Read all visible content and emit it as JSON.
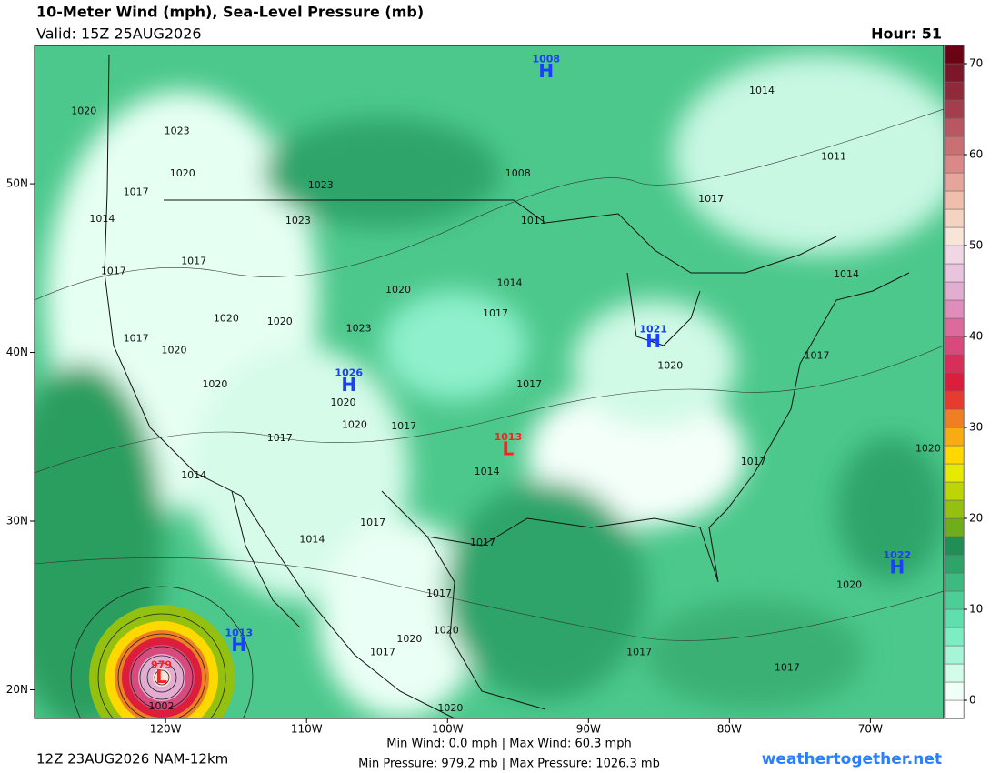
{
  "header": {
    "title": "10-Meter Wind (mph), Sea-Level Pressure (mb)",
    "valid": "Valid: 15Z 25AUG2026",
    "hour": "Hour: 51"
  },
  "map": {
    "lon_range": [
      -129.3,
      -64.8
    ],
    "lat_range": [
      18.3,
      58.2
    ],
    "lon_ticks": [
      {
        "value": -120,
        "label": "120W"
      },
      {
        "value": -110,
        "label": "110W"
      },
      {
        "value": -100,
        "label": "100W"
      },
      {
        "value": -90,
        "label": "90W"
      },
      {
        "value": -80,
        "label": "80W"
      },
      {
        "value": -70,
        "label": "70W"
      }
    ],
    "lat_ticks": [
      {
        "value": 20,
        "label": "20N"
      },
      {
        "value": 30,
        "label": "30N"
      },
      {
        "value": 40,
        "label": "40N"
      },
      {
        "value": 50,
        "label": "50N"
      }
    ],
    "centers": [
      {
        "type": "H",
        "pressure": 1008,
        "lon": -93.0,
        "lat": 56.6,
        "color": "#1a3fff"
      },
      {
        "type": "H",
        "pressure": 1021,
        "lon": -85.4,
        "lat": 40.6,
        "color": "#1a3fff"
      },
      {
        "type": "H",
        "pressure": 1026,
        "lon": -107.0,
        "lat": 38.0,
        "color": "#1a3fff"
      },
      {
        "type": "L",
        "pressure": 1013,
        "lon": -95.7,
        "lat": 34.2,
        "color": "#ff2020"
      },
      {
        "type": "H",
        "pressure": 1022,
        "lon": -68.1,
        "lat": 27.2,
        "color": "#1a3fff"
      },
      {
        "type": "H",
        "pressure": 1013,
        "lon": -114.8,
        "lat": 22.6,
        "color": "#1a3fff"
      },
      {
        "type": "L",
        "pressure": 979,
        "lon": -120.3,
        "lat": 20.7,
        "color": "#ff2020"
      }
    ],
    "isobar_labels": [
      {
        "value": 1020,
        "lon": -125.8,
        "lat": 54.3
      },
      {
        "value": 1023,
        "lon": -119.2,
        "lat": 53.1
      },
      {
        "value": 1020,
        "lon": -118.8,
        "lat": 50.6
      },
      {
        "value": 1017,
        "lon": -122.1,
        "lat": 49.5
      },
      {
        "value": 1014,
        "lon": -124.5,
        "lat": 47.9
      },
      {
        "value": 1017,
        "lon": -123.7,
        "lat": 44.8
      },
      {
        "value": 1017,
        "lon": -118.0,
        "lat": 45.4
      },
      {
        "value": 1023,
        "lon": -110.6,
        "lat": 47.8
      },
      {
        "value": 1023,
        "lon": -109.0,
        "lat": 49.9
      },
      {
        "value": 1020,
        "lon": -115.7,
        "lat": 42.0
      },
      {
        "value": 1020,
        "lon": -111.9,
        "lat": 41.8
      },
      {
        "value": 1017,
        "lon": -122.1,
        "lat": 40.8
      },
      {
        "value": 1020,
        "lon": -119.4,
        "lat": 40.1
      },
      {
        "value": 1020,
        "lon": -116.5,
        "lat": 38.1
      },
      {
        "value": 1020,
        "lon": -103.5,
        "lat": 43.7
      },
      {
        "value": 1023,
        "lon": -106.3,
        "lat": 41.4
      },
      {
        "value": 1020,
        "lon": -107.4,
        "lat": 37.0
      },
      {
        "value": 1020,
        "lon": -106.6,
        "lat": 35.7
      },
      {
        "value": 1017,
        "lon": -103.1,
        "lat": 35.6
      },
      {
        "value": 1017,
        "lon": -111.9,
        "lat": 34.9
      },
      {
        "value": 1014,
        "lon": -118.0,
        "lat": 32.7
      },
      {
        "value": 1017,
        "lon": -105.3,
        "lat": 29.9
      },
      {
        "value": 1014,
        "lon": -109.6,
        "lat": 28.9
      },
      {
        "value": 1017,
        "lon": -97.5,
        "lat": 28.7
      },
      {
        "value": 1017,
        "lon": -100.6,
        "lat": 25.7
      },
      {
        "value": 1020,
        "lon": -100.1,
        "lat": 23.5
      },
      {
        "value": 1020,
        "lon": -102.7,
        "lat": 23.0
      },
      {
        "value": 1017,
        "lon": -104.6,
        "lat": 22.2
      },
      {
        "value": 1020,
        "lon": -99.8,
        "lat": 18.9
      },
      {
        "value": 1002,
        "lon": -120.3,
        "lat": 19.0
      },
      {
        "value": 1014,
        "lon": -97.2,
        "lat": 32.9
      },
      {
        "value": 1017,
        "lon": -96.6,
        "lat": 42.3
      },
      {
        "value": 1014,
        "lon": -95.6,
        "lat": 44.1
      },
      {
        "value": 1017,
        "lon": -94.2,
        "lat": 38.1
      },
      {
        "value": 1011,
        "lon": -93.9,
        "lat": 47.8
      },
      {
        "value": 1008,
        "lon": -95.0,
        "lat": 50.6
      },
      {
        "value": 1014,
        "lon": -77.7,
        "lat": 55.5
      },
      {
        "value": 1011,
        "lon": -72.6,
        "lat": 51.6
      },
      {
        "value": 1017,
        "lon": -81.3,
        "lat": 49.1
      },
      {
        "value": 1014,
        "lon": -71.7,
        "lat": 44.6
      },
      {
        "value": 1020,
        "lon": -84.2,
        "lat": 39.2
      },
      {
        "value": 1017,
        "lon": -73.8,
        "lat": 39.8
      },
      {
        "value": 1017,
        "lon": -78.3,
        "lat": 33.5
      },
      {
        "value": 1020,
        "lon": -65.9,
        "lat": 34.3
      },
      {
        "value": 1020,
        "lon": -71.5,
        "lat": 26.2
      },
      {
        "value": 1017,
        "lon": -86.4,
        "lat": 22.2
      },
      {
        "value": 1017,
        "lon": -75.9,
        "lat": 21.3
      }
    ]
  },
  "colorbar": {
    "range": [
      -2,
      72
    ],
    "ticks": [
      0,
      10,
      20,
      30,
      40,
      50,
      60,
      70
    ],
    "colors": [
      "#ffffff",
      "#f0fff8",
      "#d2fbe9",
      "#a6f5d8",
      "#7eedc4",
      "#5fdfae",
      "#4ccf97",
      "#3cba7f",
      "#2ea46a",
      "#1f8f55",
      "#6fae1a",
      "#94c00f",
      "#bcd506",
      "#e6ea00",
      "#ffd800",
      "#f8ac12",
      "#ef7f22",
      "#e63b2f",
      "#dc1e3c",
      "#d72f5a",
      "#d94a7c",
      "#dc6a9c",
      "#df8dbb",
      "#e3acd1",
      "#e9c4de",
      "#f1d6e4",
      "#f8e4d8",
      "#f5d3c0",
      "#efbfac",
      "#e6a59a",
      "#d98a88",
      "#c97075",
      "#b85662",
      "#a43e4e",
      "#902a3b",
      "#7c1628",
      "#6a0414"
    ]
  },
  "footer": {
    "model_run": "12Z 23AUG2026 NAM-12km",
    "stats": [
      "Min Wind:  0.0 mph | Max Wind: 60.3 mph",
      "Min Pressure: 979.2 mb | Max Pressure: 1026.3 mb"
    ],
    "site": "weathertogether.net"
  }
}
